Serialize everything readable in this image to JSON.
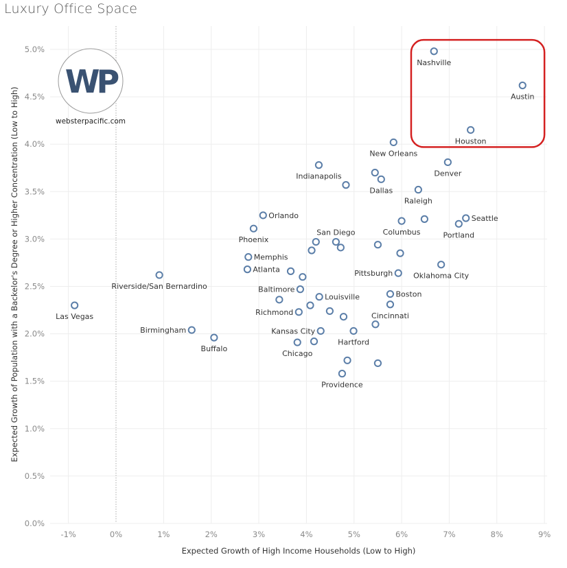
{
  "chart_data": {
    "type": "scatter",
    "title": "Luxury Office Space",
    "xlabel": "Expected Growth of High Income Households (Low to High)",
    "ylabel": "Expected Growth of Population with a Backelor's Degree or Higher Concentration (Low to High)",
    "xlim": [
      -1.4,
      9.1
    ],
    "ylim": [
      0.0,
      5.25
    ],
    "x_ticks": [
      -1,
      0,
      1,
      2,
      3,
      4,
      5,
      6,
      7,
      8,
      9
    ],
    "x_tick_labels": [
      "-1%",
      "0%",
      "1%",
      "2%",
      "3%",
      "4%",
      "5%",
      "6%",
      "7%",
      "8%",
      "9%"
    ],
    "y_ticks": [
      0.0,
      0.5,
      1.0,
      1.5,
      2.0,
      2.5,
      3.0,
      3.5,
      4.0,
      4.5,
      5.0
    ],
    "y_tick_labels": [
      "0.0%",
      "0.5%",
      "1.0%",
      "1.5%",
      "2.0%",
      "2.5%",
      "3.0%",
      "3.5%",
      "4.0%",
      "4.5%",
      "5.0%"
    ],
    "grid": true,
    "zero_line_x": 0,
    "marker_color": "#5b7ea8",
    "highlight": {
      "color": "#d42020",
      "xrange": [
        6.2,
        9.0
      ],
      "yrange": [
        3.97,
        5.1
      ],
      "members": [
        "Nashville",
        "Austin",
        "Houston"
      ]
    },
    "points": [
      {
        "label": "Nashville",
        "x": 6.68,
        "y": 4.98,
        "pos": "below"
      },
      {
        "label": "Austin",
        "x": 8.54,
        "y": 4.62,
        "pos": "below"
      },
      {
        "label": "Houston",
        "x": 7.45,
        "y": 4.15,
        "pos": "below"
      },
      {
        "label": "New Orleans",
        "x": 5.83,
        "y": 4.02,
        "pos": "below"
      },
      {
        "label": "Denver",
        "x": 6.97,
        "y": 3.81,
        "pos": "below"
      },
      {
        "label": "Indianapolis",
        "x": 4.26,
        "y": 3.78,
        "pos": "below"
      },
      {
        "label": "",
        "x": 4.83,
        "y": 3.57,
        "pos": "none"
      },
      {
        "label": "",
        "x": 5.44,
        "y": 3.7,
        "pos": "none"
      },
      {
        "label": "Dallas",
        "x": 5.57,
        "y": 3.63,
        "pos": "below"
      },
      {
        "label": "Raleigh",
        "x": 6.35,
        "y": 3.52,
        "pos": "below"
      },
      {
        "label": "Orlando",
        "x": 3.09,
        "y": 3.25,
        "pos": "right"
      },
      {
        "label": "Phoenix",
        "x": 2.89,
        "y": 3.11,
        "pos": "below"
      },
      {
        "label": "Columbus",
        "x": 6.0,
        "y": 3.19,
        "pos": "below"
      },
      {
        "label": "",
        "x": 6.48,
        "y": 3.21,
        "pos": "none"
      },
      {
        "label": "Seattle",
        "x": 7.35,
        "y": 3.22,
        "pos": "right"
      },
      {
        "label": "Portland",
        "x": 7.2,
        "y": 3.16,
        "pos": "below"
      },
      {
        "label": "",
        "x": 4.2,
        "y": 2.97,
        "pos": "none"
      },
      {
        "label": "",
        "x": 4.11,
        "y": 2.88,
        "pos": "none"
      },
      {
        "label": "San Diego",
        "x": 4.62,
        "y": 2.97,
        "pos": "above"
      },
      {
        "label": "",
        "x": 4.72,
        "y": 2.91,
        "pos": "none"
      },
      {
        "label": "",
        "x": 5.5,
        "y": 2.94,
        "pos": "none"
      },
      {
        "label": "",
        "x": 5.97,
        "y": 2.85,
        "pos": "none"
      },
      {
        "label": "Memphis",
        "x": 2.78,
        "y": 2.81,
        "pos": "right"
      },
      {
        "label": "Atlanta",
        "x": 2.76,
        "y": 2.68,
        "pos": "right"
      },
      {
        "label": "",
        "x": 3.67,
        "y": 2.66,
        "pos": "none"
      },
      {
        "label": "",
        "x": 3.92,
        "y": 2.6,
        "pos": "none"
      },
      {
        "label": "Oklahoma City",
        "x": 6.83,
        "y": 2.73,
        "pos": "below"
      },
      {
        "label": "Pittsburgh",
        "x": 5.93,
        "y": 2.64,
        "pos": "left"
      },
      {
        "label": "Baltimore",
        "x": 3.87,
        "y": 2.47,
        "pos": "left"
      },
      {
        "label": "Boston",
        "x": 5.76,
        "y": 2.42,
        "pos": "right"
      },
      {
        "label": "",
        "x": 3.43,
        "y": 2.36,
        "pos": "none"
      },
      {
        "label": "Louisville",
        "x": 4.27,
        "y": 2.39,
        "pos": "right"
      },
      {
        "label": "Cincinnati",
        "x": 5.76,
        "y": 2.31,
        "pos": "below"
      },
      {
        "label": "",
        "x": 4.08,
        "y": 2.3,
        "pos": "none"
      },
      {
        "label": "Richmond",
        "x": 3.84,
        "y": 2.23,
        "pos": "left"
      },
      {
        "label": "",
        "x": 4.49,
        "y": 2.24,
        "pos": "none"
      },
      {
        "label": "",
        "x": 4.78,
        "y": 2.18,
        "pos": "none"
      },
      {
        "label": "",
        "x": 5.45,
        "y": 2.1,
        "pos": "none"
      },
      {
        "label": "Kansas City",
        "x": 4.3,
        "y": 2.03,
        "pos": "left"
      },
      {
        "label": "Hartford",
        "x": 4.99,
        "y": 2.03,
        "pos": "below"
      },
      {
        "label": "Chicago",
        "x": 3.81,
        "y": 1.91,
        "pos": "below"
      },
      {
        "label": "",
        "x": 4.16,
        "y": 1.92,
        "pos": "none"
      },
      {
        "label": "",
        "x": 4.86,
        "y": 1.72,
        "pos": "none"
      },
      {
        "label": "",
        "x": 5.5,
        "y": 1.69,
        "pos": "none"
      },
      {
        "label": "Providence",
        "x": 4.75,
        "y": 1.58,
        "pos": "below"
      },
      {
        "label": "Las Vegas",
        "x": -0.87,
        "y": 2.3,
        "pos": "below"
      },
      {
        "label": "Riverside/San Bernardino",
        "x": 0.91,
        "y": 2.62,
        "pos": "below"
      },
      {
        "label": "Birmingham",
        "x": 1.59,
        "y": 2.04,
        "pos": "left"
      },
      {
        "label": "Buffalo",
        "x": 2.06,
        "y": 1.96,
        "pos": "below"
      }
    ]
  },
  "logo": {
    "mark": "WP",
    "url_text": "websterpacific.com",
    "mark_color": "#3a5272"
  }
}
